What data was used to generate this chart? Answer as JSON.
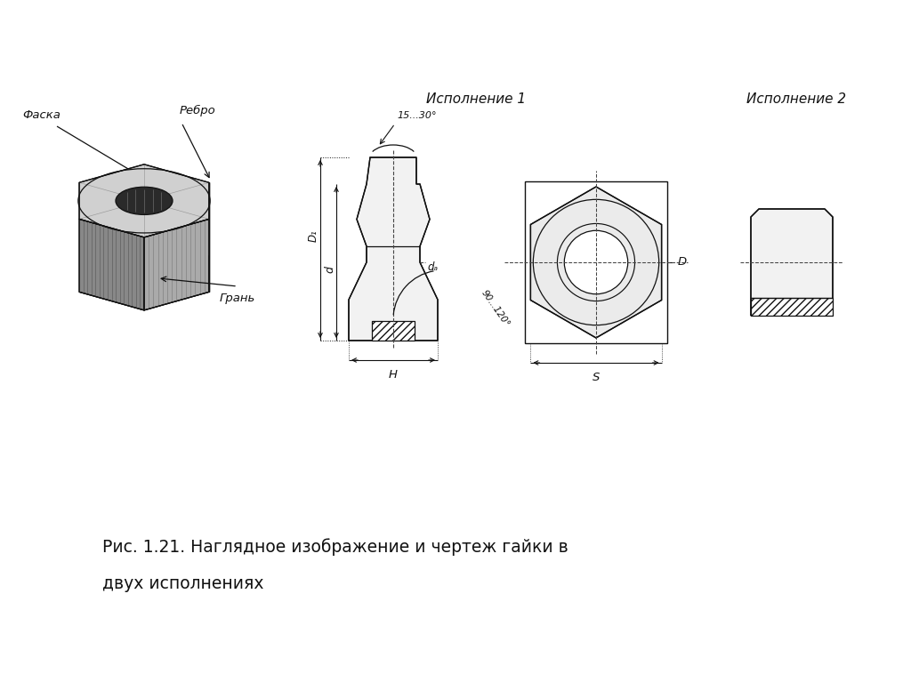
{
  "bg_color": "#ffffff",
  "title_line1": "Рис. 1.21. Наглядное изображение и чертеж гайки в",
  "title_line2": "двух исполнениях",
  "label_fasca": "Фаска",
  "label_rebro": "Ребро",
  "label_gran": "Грань",
  "label_isp1": "Исполнение 1",
  "label_isp2": "Исполнение 2",
  "label_H": "H",
  "label_S": "S",
  "label_d": "d",
  "label_D1": "D₁",
  "label_da": "dₐ",
  "label_D": "D",
  "label_angle1": "15...30°",
  "label_angle2": "90...120°",
  "lc": "#111111",
  "fig_width": 10.24,
  "fig_height": 7.67,
  "dpi": 100
}
